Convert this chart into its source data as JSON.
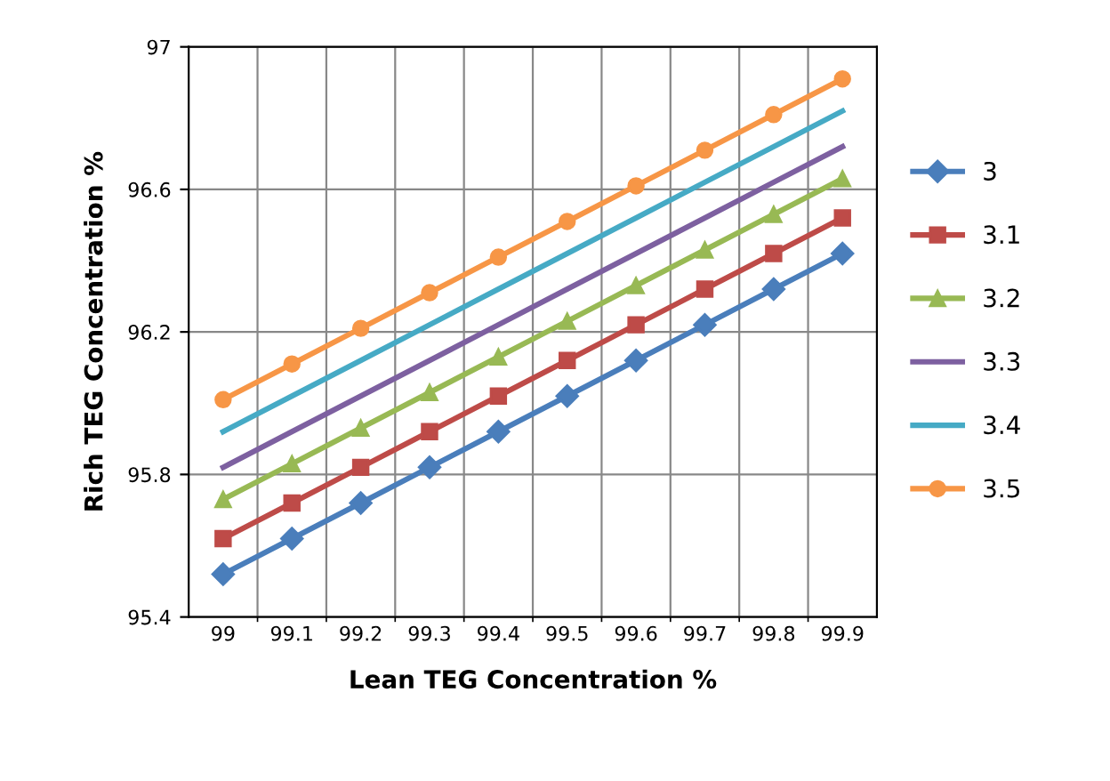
{
  "chart_data": {
    "type": "line",
    "xlabel": "Lean TEG Concentration %",
    "ylabel": "Rich TEG Concentration %",
    "categories": [
      "99",
      "99.1",
      "99.2",
      "99.3",
      "99.4",
      "99.5",
      "99.6",
      "99.7",
      "99.8",
      "99.9"
    ],
    "ylim": [
      95.4,
      97
    ],
    "yticks": [
      95.4,
      95.8,
      96.2,
      96.6,
      97
    ],
    "grid": true,
    "legend": "right",
    "series": [
      {
        "name": "3",
        "color": "#4a7ebb",
        "marker": "diamond",
        "values": [
          95.52,
          95.62,
          95.72,
          95.82,
          95.92,
          96.02,
          96.12,
          96.22,
          96.32,
          96.42
        ]
      },
      {
        "name": "3.1",
        "color": "#be4b48",
        "marker": "square",
        "values": [
          95.62,
          95.72,
          95.82,
          95.92,
          96.02,
          96.12,
          96.22,
          96.32,
          96.42,
          96.52
        ]
      },
      {
        "name": "3.2",
        "color": "#98b954",
        "marker": "triangle",
        "values": [
          95.73,
          95.83,
          95.93,
          96.03,
          96.13,
          96.23,
          96.33,
          96.43,
          96.53,
          96.63
        ]
      },
      {
        "name": "3.3",
        "color": "#7d60a0",
        "marker": "none",
        "values": [
          95.82,
          95.92,
          96.02,
          96.12,
          96.22,
          96.32,
          96.42,
          96.52,
          96.62,
          96.72
        ]
      },
      {
        "name": "3.4",
        "color": "#46aac5",
        "marker": "none",
        "values": [
          95.92,
          96.02,
          96.12,
          96.22,
          96.32,
          96.42,
          96.52,
          96.62,
          96.72,
          96.82
        ]
      },
      {
        "name": "3.5",
        "color": "#f79646",
        "marker": "circle",
        "values": [
          96.01,
          96.11,
          96.21,
          96.31,
          96.41,
          96.51,
          96.61,
          96.71,
          96.81,
          96.91
        ]
      }
    ]
  }
}
